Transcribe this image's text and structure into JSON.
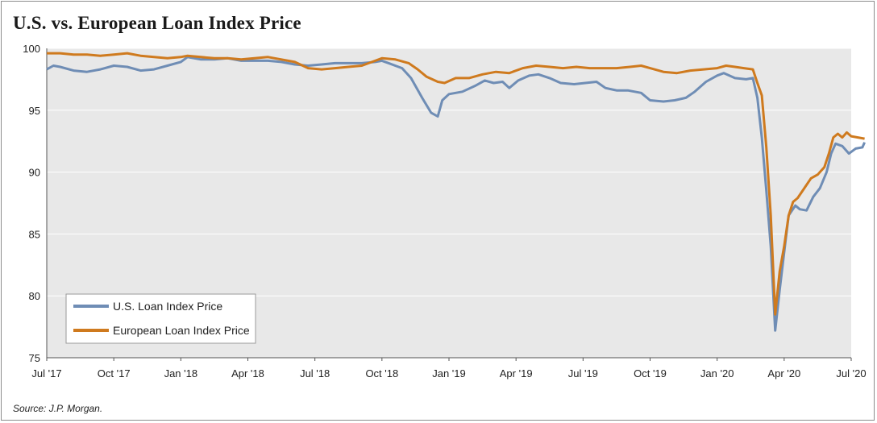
{
  "title": "U.S. vs. European Loan Index Price",
  "source": "Source: J.P. Morgan.",
  "colors": {
    "us": "#6f8db5",
    "europe": "#cf7a1e",
    "plot_bg": "#e8e8e8"
  },
  "chart_data": {
    "type": "line",
    "title": "U.S. vs. European Loan Index Price",
    "xlabel": "",
    "ylabel": "",
    "x_unit": "months since Jul 2017",
    "xlim": [
      0,
      36
    ],
    "ylim": [
      75,
      100
    ],
    "yticks": [
      75,
      80,
      85,
      90,
      95,
      100
    ],
    "xticks": [
      {
        "x": 0,
        "label": "Jul '17"
      },
      {
        "x": 3,
        "label": "Oct '17"
      },
      {
        "x": 6,
        "label": "Jan '18"
      },
      {
        "x": 9,
        "label": "Apr '18"
      },
      {
        "x": 12,
        "label": "Jul '18"
      },
      {
        "x": 15,
        "label": "Oct '18"
      },
      {
        "x": 18,
        "label": "Jan '19"
      },
      {
        "x": 21,
        "label": "Apr '19"
      },
      {
        "x": 24,
        "label": "Jul '19"
      },
      {
        "x": 27,
        "label": "Oct '19"
      },
      {
        "x": 30,
        "label": "Jan '20"
      },
      {
        "x": 33,
        "label": "Apr '20"
      },
      {
        "x": 36,
        "label": "Jul '20"
      }
    ],
    "grid": "horizontal",
    "legend_position": "bottom-left",
    "series": [
      {
        "name": "U.S. Loan Index Price",
        "color": "#6f8db5",
        "points": [
          [
            0,
            98.3
          ],
          [
            0.3,
            98.6
          ],
          [
            0.6,
            98.5
          ],
          [
            1.2,
            98.2
          ],
          [
            1.8,
            98.1
          ],
          [
            2.4,
            98.3
          ],
          [
            3.0,
            98.6
          ],
          [
            3.6,
            98.5
          ],
          [
            4.2,
            98.2
          ],
          [
            4.8,
            98.3
          ],
          [
            5.4,
            98.6
          ],
          [
            6.0,
            98.9
          ],
          [
            6.3,
            99.3
          ],
          [
            6.9,
            99.1
          ],
          [
            7.5,
            99.1
          ],
          [
            8.1,
            99.2
          ],
          [
            8.7,
            99.0
          ],
          [
            9.3,
            99.0
          ],
          [
            9.9,
            99.0
          ],
          [
            10.5,
            98.9
          ],
          [
            11.1,
            98.7
          ],
          [
            11.7,
            98.6
          ],
          [
            12.3,
            98.7
          ],
          [
            12.9,
            98.8
          ],
          [
            13.5,
            98.8
          ],
          [
            14.1,
            98.8
          ],
          [
            14.7,
            98.9
          ],
          [
            15.0,
            99.0
          ],
          [
            15.3,
            98.8
          ],
          [
            15.9,
            98.4
          ],
          [
            16.3,
            97.6
          ],
          [
            16.8,
            96.0
          ],
          [
            17.2,
            94.8
          ],
          [
            17.5,
            94.5
          ],
          [
            17.7,
            95.8
          ],
          [
            18.0,
            96.3
          ],
          [
            18.6,
            96.5
          ],
          [
            19.2,
            97.0
          ],
          [
            19.6,
            97.4
          ],
          [
            20.0,
            97.2
          ],
          [
            20.4,
            97.3
          ],
          [
            20.7,
            96.8
          ],
          [
            21.1,
            97.4
          ],
          [
            21.6,
            97.8
          ],
          [
            22.0,
            97.9
          ],
          [
            22.5,
            97.6
          ],
          [
            23.0,
            97.2
          ],
          [
            23.6,
            97.1
          ],
          [
            24.1,
            97.2
          ],
          [
            24.6,
            97.3
          ],
          [
            25.0,
            96.8
          ],
          [
            25.5,
            96.6
          ],
          [
            26.0,
            96.6
          ],
          [
            26.6,
            96.4
          ],
          [
            27.0,
            95.8
          ],
          [
            27.6,
            95.7
          ],
          [
            28.1,
            95.8
          ],
          [
            28.6,
            96.0
          ],
          [
            29.0,
            96.5
          ],
          [
            29.5,
            97.3
          ],
          [
            30.0,
            97.8
          ],
          [
            30.3,
            98.0
          ],
          [
            30.8,
            97.6
          ],
          [
            31.3,
            97.5
          ],
          [
            31.6,
            97.6
          ],
          [
            31.8,
            96.0
          ],
          [
            32.0,
            92.8
          ],
          [
            32.2,
            88.5
          ],
          [
            32.4,
            84.0
          ],
          [
            32.6,
            77.2
          ],
          [
            32.8,
            80.5
          ],
          [
            33.0,
            83.5
          ],
          [
            33.2,
            86.5
          ],
          [
            33.5,
            87.3
          ],
          [
            33.7,
            87.0
          ],
          [
            34.0,
            86.9
          ],
          [
            34.3,
            88.0
          ],
          [
            34.6,
            88.7
          ],
          [
            34.9,
            90.0
          ],
          [
            35.1,
            91.5
          ],
          [
            35.3,
            92.3
          ],
          [
            35.6,
            92.1
          ],
          [
            35.9,
            91.5
          ],
          [
            36.2,
            91.9
          ],
          [
            36.5,
            92.0
          ],
          [
            36.6,
            92.4
          ]
        ]
      },
      {
        "name": "European Loan Index Price",
        "color": "#cf7a1e",
        "points": [
          [
            0,
            99.6
          ],
          [
            0.6,
            99.6
          ],
          [
            1.2,
            99.5
          ],
          [
            1.8,
            99.5
          ],
          [
            2.4,
            99.4
          ],
          [
            3.0,
            99.5
          ],
          [
            3.6,
            99.6
          ],
          [
            4.2,
            99.4
          ],
          [
            4.8,
            99.3
          ],
          [
            5.4,
            99.2
          ],
          [
            6.0,
            99.3
          ],
          [
            6.3,
            99.4
          ],
          [
            6.9,
            99.3
          ],
          [
            7.5,
            99.2
          ],
          [
            8.1,
            99.2
          ],
          [
            8.7,
            99.1
          ],
          [
            9.3,
            99.2
          ],
          [
            9.9,
            99.3
          ],
          [
            10.5,
            99.1
          ],
          [
            11.1,
            98.9
          ],
          [
            11.7,
            98.4
          ],
          [
            12.3,
            98.3
          ],
          [
            12.9,
            98.4
          ],
          [
            13.5,
            98.5
          ],
          [
            14.1,
            98.6
          ],
          [
            14.7,
            99.0
          ],
          [
            15.0,
            99.2
          ],
          [
            15.6,
            99.1
          ],
          [
            16.2,
            98.8
          ],
          [
            16.6,
            98.3
          ],
          [
            17.0,
            97.7
          ],
          [
            17.5,
            97.3
          ],
          [
            17.8,
            97.2
          ],
          [
            18.3,
            97.6
          ],
          [
            18.9,
            97.6
          ],
          [
            19.5,
            97.9
          ],
          [
            20.1,
            98.1
          ],
          [
            20.7,
            98.0
          ],
          [
            21.3,
            98.4
          ],
          [
            21.9,
            98.6
          ],
          [
            22.5,
            98.5
          ],
          [
            23.1,
            98.4
          ],
          [
            23.7,
            98.5
          ],
          [
            24.3,
            98.4
          ],
          [
            24.9,
            98.4
          ],
          [
            25.5,
            98.4
          ],
          [
            26.1,
            98.5
          ],
          [
            26.6,
            98.6
          ],
          [
            27.0,
            98.4
          ],
          [
            27.6,
            98.1
          ],
          [
            28.2,
            98.0
          ],
          [
            28.8,
            98.2
          ],
          [
            29.4,
            98.3
          ],
          [
            30.0,
            98.4
          ],
          [
            30.4,
            98.6
          ],
          [
            30.8,
            98.5
          ],
          [
            31.2,
            98.4
          ],
          [
            31.6,
            98.3
          ],
          [
            31.8,
            97.2
          ],
          [
            32.0,
            96.2
          ],
          [
            32.2,
            92.0
          ],
          [
            32.4,
            86.5
          ],
          [
            32.6,
            78.5
          ],
          [
            32.8,
            82.0
          ],
          [
            33.0,
            84.0
          ],
          [
            33.2,
            86.5
          ],
          [
            33.4,
            87.6
          ],
          [
            33.6,
            87.9
          ],
          [
            33.9,
            88.7
          ],
          [
            34.2,
            89.5
          ],
          [
            34.5,
            89.8
          ],
          [
            34.8,
            90.4
          ],
          [
            35.0,
            91.5
          ],
          [
            35.2,
            92.8
          ],
          [
            35.4,
            93.1
          ],
          [
            35.6,
            92.8
          ],
          [
            35.8,
            93.2
          ],
          [
            36.0,
            92.9
          ],
          [
            36.3,
            92.8
          ],
          [
            36.6,
            92.7
          ]
        ]
      }
    ]
  }
}
